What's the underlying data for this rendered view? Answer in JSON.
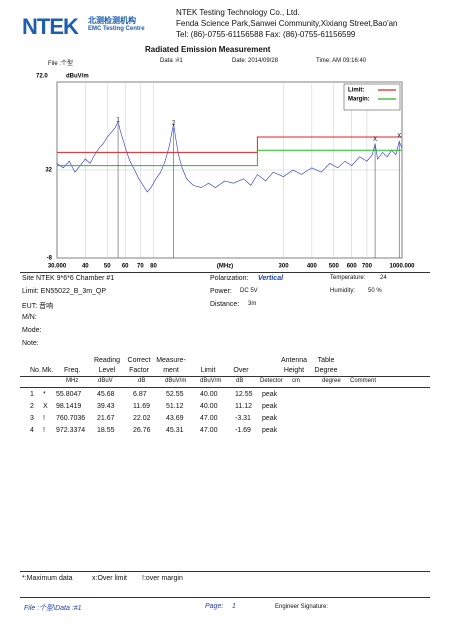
{
  "header": {
    "logo": {
      "brand": "NTEK",
      "cn": "北测检测机构",
      "en": "EMC Testing Centre"
    },
    "company": "NTEK Testing Technology Co., Ltd.",
    "address": "Fenda Science Park,Sanwei Community,Xixiang Street,Bao'an",
    "tel": "Tel: (86)-0755-61156588   Fax: (86)-0755-61156599"
  },
  "title": "Radiated Emission Measurement",
  "info": {
    "file": "File :个型",
    "data": "Data :#1",
    "date": "Date: 2014/09/28",
    "time": "Time: AM 09:16:40"
  },
  "chart": {
    "type": "line",
    "y_unit": "dBuV/m",
    "x_label": "(MHz)",
    "log_x": true,
    "grid": true,
    "xlim": [
      30,
      1000
    ],
    "ylim": [
      -8,
      72
    ],
    "xticks": [
      {
        "value": 30,
        "label": "30.000"
      },
      40,
      50,
      60,
      70,
      80,
      300,
      400,
      500,
      600,
      700,
      {
        "value": 1000,
        "label": "1000.000"
      }
    ],
    "yticks": [
      {
        "value": 72,
        "label": "72.0"
      },
      32,
      -8
    ],
    "series": [
      {
        "color": "#2233cc",
        "x": [
          30,
          32,
          34,
          36,
          38,
          40,
          42,
          44,
          46,
          48,
          50,
          52,
          54,
          55.8,
          57,
          59,
          61,
          63,
          66,
          69,
          72,
          75,
          78,
          82,
          86,
          90,
          94,
          96,
          98.1,
          100,
          103,
          107,
          112,
          120,
          130,
          140,
          150,
          165,
          180,
          200,
          215,
          230,
          250,
          270,
          300,
          330,
          360,
          400,
          440,
          480,
          520,
          560,
          600,
          650,
          700,
          740,
          760.7,
          780,
          820,
          860,
          900,
          940,
          972.3,
          1000
        ],
        "values": [
          35,
          33,
          36,
          31,
          34,
          37,
          35,
          39,
          42,
          44,
          47,
          49,
          51,
          54,
          50,
          45,
          40,
          36,
          32,
          28,
          25,
          22,
          24,
          28,
          31,
          36,
          43,
          48,
          53,
          47,
          39,
          33,
          28,
          25,
          24,
          26,
          24,
          27,
          26,
          28,
          25,
          30,
          27,
          31,
          29,
          32,
          30,
          33,
          31,
          35,
          33,
          36,
          34,
          38,
          36,
          39,
          44,
          37,
          40,
          38,
          41,
          39,
          45,
          42
        ]
      },
      {
        "name": "Limit:",
        "color": "#e02020",
        "x": [
          30,
          230,
          230,
          1000
        ],
        "values": [
          40,
          40,
          47,
          47
        ]
      },
      {
        "name": "Margin:",
        "color": "#22bb22",
        "x": [
          30,
          230,
          230,
          1000
        ],
        "values": [
          34,
          34,
          41,
          41
        ]
      }
    ],
    "markers": {
      "labels": [
        "1",
        "2",
        "X",
        "X"
      ],
      "x": [
        55.8047,
        98.1419,
        760.7036,
        972.3374
      ],
      "values": [
        52.55,
        51.12,
        43.69,
        45.31
      ]
    }
  },
  "details": {
    "site": "Site  NTEK 9*6*6 Chamber #1",
    "polarization_label": "Polarization:",
    "polarization": "Vertical",
    "temperature_label": "Temperature:",
    "temperature": "24",
    "limit": "Limit:  EN55022_B_3m_QP",
    "power_label": "Power:",
    "power": "DC 5V",
    "humidity_label": "Humidity:",
    "humidity": "50 %",
    "eut": "EUT:  音响",
    "distance_label": "Distance:",
    "distance": "3m",
    "mn": "M/N:",
    "mode": "Mode:",
    "note": "Note:"
  },
  "table": {
    "headers": [
      "No.",
      "Mk.",
      "Freq.",
      "Reading Level",
      "Correct Factor",
      "Measure-ment",
      "Limit",
      "Over",
      "Antenna Height",
      "Table Degree"
    ],
    "units": [
      "MHz",
      "dBuV",
      "dB",
      "dBuV/m",
      "dBuV/m",
      "dB",
      "Detector",
      "cm",
      "degree",
      "Comment"
    ],
    "rows": [
      [
        "1",
        "*",
        "55.8047",
        "45.68",
        "6.87",
        "52.55",
        "40.00",
        "12.55",
        "peak"
      ],
      [
        "2",
        "X",
        "98.1419",
        "39.43",
        "11.69",
        "51.12",
        "40.00",
        "11.12",
        "peak"
      ],
      [
        "3",
        "!",
        "760.7036",
        "21.67",
        "22.02",
        "43.69",
        "47.00",
        "-3.31",
        "peak"
      ],
      [
        "4",
        "!",
        "972.3374",
        "18.55",
        "26.76",
        "45.31",
        "47.00",
        "-1.69",
        "peak"
      ]
    ]
  },
  "legend_note": [
    "*:Maximum data",
    "x:Over limit",
    "!:over margin"
  ],
  "footer": {
    "file": "File :个型\\Data :#1",
    "page_label": "Page:",
    "page": "1",
    "signature": "Engineer Signature:"
  }
}
